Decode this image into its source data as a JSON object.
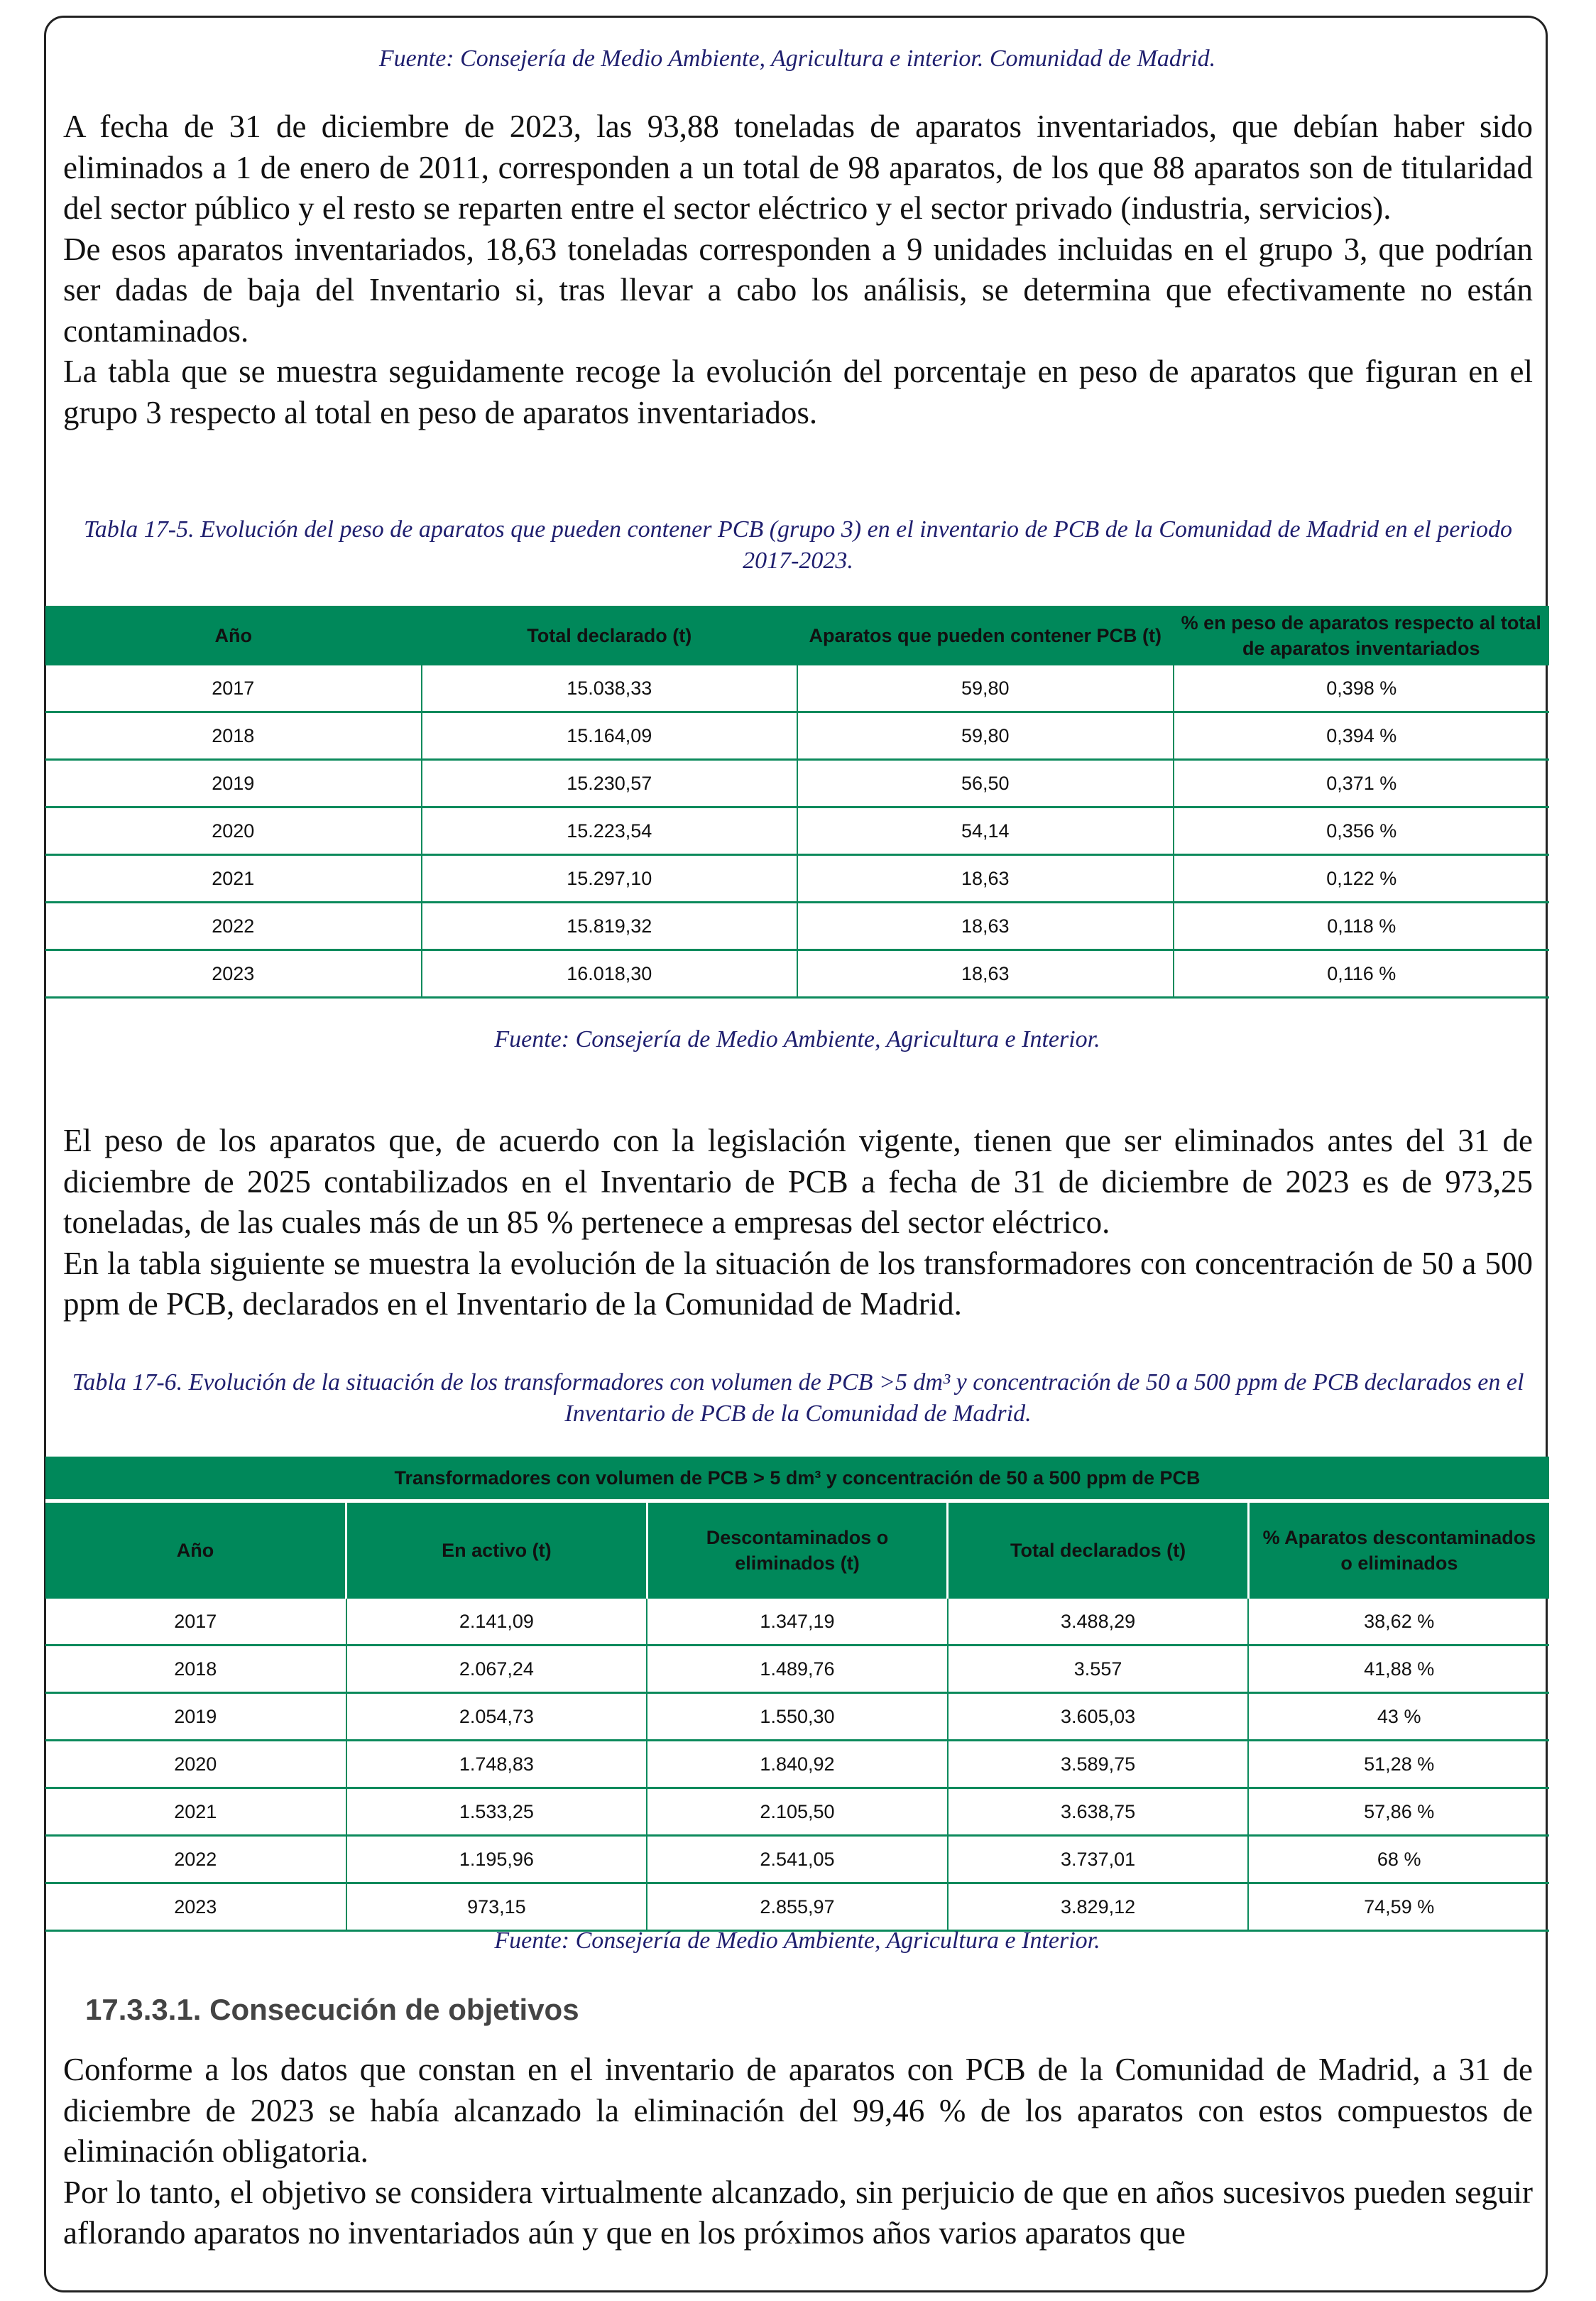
{
  "source_top": "Fuente: Consejería de Medio Ambiente, Agricultura e interior. Comunidad de Madrid.",
  "paragraphs_1": [
    "A fecha de 31 de diciembre de 2023, las 93,88 toneladas de aparatos inventariados, que debían haber sido eliminados a 1 de enero de 2011, corresponden a un total de 98 aparatos, de los que 88 aparatos son de titularidad del sector público y el resto se reparten entre el sector eléctrico y el sector privado (industria, servicios).",
    "De esos aparatos inventariados, 18,63 toneladas corresponden a 9 unidades incluidas en el grupo 3, que podrían ser dadas de baja del Inventario si, tras llevar a cabo los análisis, se determina que efectivamente no están contaminados.",
    "La tabla que se muestra seguidamente recoge la evolución del porcentaje en peso de aparatos que figuran en el grupo 3 respecto al total en peso de aparatos inventariados."
  ],
  "table1": {
    "caption": "Tabla 17-5. Evolución del peso de aparatos que pueden contener PCB (grupo 3) en el inventario de PCB de la Comunidad de Madrid en el periodo 2017-2023.",
    "headers": [
      "Año",
      "Total declarado (t)",
      "Aparatos que pueden contener PCB (t)",
      "% en peso de aparatos respecto al total de aparatos inventariados"
    ],
    "rows": [
      [
        "2017",
        "15.038,33",
        "59,80",
        "0,398 %"
      ],
      [
        "2018",
        "15.164,09",
        "59,80",
        "0,394 %"
      ],
      [
        "2019",
        "15.230,57",
        "56,50",
        "0,371 %"
      ],
      [
        "2020",
        "15.223,54",
        "54,14",
        "0,356 %"
      ],
      [
        "2021",
        "15.297,10",
        "18,63",
        "0,122 %"
      ],
      [
        "2022",
        "15.819,32",
        "18,63",
        "0,118 %"
      ],
      [
        "2023",
        "16.018,30",
        "18,63",
        "0,116 %"
      ]
    ],
    "source": "Fuente: Consejería de Medio Ambiente, Agricultura e Interior."
  },
  "paragraphs_2": [
    "El peso de los aparatos que, de acuerdo con la legislación vigente, tienen que ser eliminados antes del 31 de diciembre de 2025 contabilizados en el Inventario de PCB a fecha de 31 de diciembre de 2023 es de 973,25 toneladas, de las cuales más de un 85 % pertenece a empresas del sector eléctrico.",
    "En la tabla siguiente se muestra la evolución de la situación de los transformadores con concentración de 50 a 500 ppm de PCB, declarados en el Inventario de la Comunidad de Madrid."
  ],
  "table2": {
    "caption": "Tabla 17-6. Evolución de la situación de los transformadores con volumen de PCB >5 dm³ y concentración de 50 a 500 ppm de PCB declarados en el Inventario de PCB de la Comunidad de Madrid.",
    "group_header": "Transformadores con volumen de PCB > 5 dm³ y concentración de 50 a 500 ppm de PCB",
    "headers": [
      "Año",
      "En activo (t)",
      "Descontaminados o eliminados (t)",
      "Total declarados (t)",
      "% Aparatos descontaminados o eliminados"
    ],
    "rows": [
      [
        "2017",
        "2.141,09",
        "1.347,19",
        "3.488,29",
        "38,62 %"
      ],
      [
        "2018",
        "2.067,24",
        "1.489,76",
        "3.557",
        "41,88 %"
      ],
      [
        "2019",
        "2.054,73",
        "1.550,30",
        "3.605,03",
        "43 %"
      ],
      [
        "2020",
        "1.748,83",
        "1.840,92",
        "3.589,75",
        "51,28 %"
      ],
      [
        "2021",
        "1.533,25",
        "2.105,50",
        "3.638,75",
        "57,86 %"
      ],
      [
        "2022",
        "1.195,96",
        "2.541,05",
        "3.737,01",
        "68 %"
      ],
      [
        "2023",
        "973,15",
        "2.855,97",
        "3.829,12",
        "74,59 %"
      ]
    ],
    "source": "Fuente: Consejería de Medio Ambiente, Agricultura e Interior."
  },
  "section_heading": "17.3.3.1. Consecución de objetivos",
  "paragraphs_3": [
    "Conforme a los datos que constan en el inventario de aparatos con PCB de la Comunidad de Madrid, a 31 de diciembre de 2023 se había alcanzado la eliminación del 99,46 % de los aparatos con estos compuestos de eliminación obligatoria.",
    "Por lo tanto, el objetivo se considera virtualmente alcanzado, sin perjuicio de que en años sucesivos pueden seguir aflorando aparatos no inventariados aún y que en los próximos años varios aparatos que"
  ],
  "colors": {
    "table_header": "#00885a",
    "caption": "#1f1f6e"
  }
}
